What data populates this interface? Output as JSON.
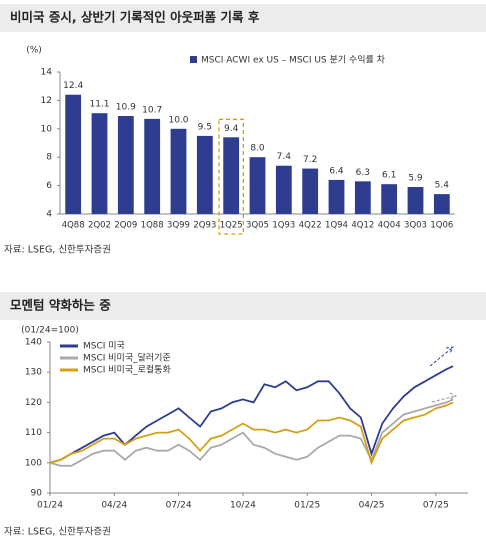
{
  "chart_data": [
    {
      "type": "bar",
      "title": "비미국 증시, 상반기 기록적인 아웃퍼폼 기록 후",
      "y_unit": "(%)",
      "series": [
        {
          "name": "MSCI ACWI ex US – MSCI US 분기 수익률 차",
          "color": "#2e3d8f",
          "values": [
            12.4,
            11.1,
            10.9,
            10.7,
            10.0,
            9.5,
            9.4,
            8.0,
            7.4,
            7.2,
            6.4,
            6.3,
            6.1,
            5.9,
            5.4
          ],
          "value_labels": [
            "12.4",
            "11.1",
            "10.9",
            "10.7",
            "10.0",
            "9.5",
            "9.4",
            "8.0",
            "7.4",
            "7.2",
            "6.4",
            "6.3",
            "6.1",
            "5.9",
            "5.4"
          ]
        }
      ],
      "categories": [
        "4Q88",
        "2Q02",
        "2Q09",
        "1Q88",
        "3Q99",
        "2Q93",
        "1Q25",
        "3Q05",
        "1Q93",
        "4Q22",
        "1Q94",
        "4Q12",
        "4Q04",
        "3Q03",
        "1Q06"
      ],
      "highlight_index": 6,
      "highlight_color": "#d4a017",
      "ylim": [
        4,
        14
      ],
      "yticks": [
        4,
        6,
        8,
        10,
        12,
        14
      ],
      "grid": false,
      "source": "자료: LSEG, 신한투자증권"
    },
    {
      "type": "line",
      "title": "모멘텀 약화하는 중",
      "y_unit": "(01/24=100)",
      "x": [
        0,
        0.5,
        1,
        1.5,
        2,
        2.5,
        3,
        3.5,
        4,
        4.5,
        5,
        5.5,
        6,
        6.5,
        7,
        7.5,
        8,
        8.5,
        9,
        9.5,
        10,
        10.5,
        11,
        11.5,
        12,
        12.5,
        13,
        13.5,
        14,
        14.5,
        15,
        15.5,
        16,
        16.5,
        17,
        17.5,
        18,
        18.5,
        18.8
      ],
      "series": [
        {
          "name": "MSCI 미국",
          "color": "#2e3d8f",
          "values": [
            100,
            101,
            103,
            105,
            107,
            109,
            110,
            106,
            109,
            112,
            114,
            116,
            118,
            115,
            112,
            117,
            118,
            120,
            121,
            120,
            126,
            125,
            127,
            124,
            125,
            127,
            127,
            123,
            118,
            115,
            103,
            113,
            118,
            122,
            125,
            127,
            129,
            131,
            132
          ]
        },
        {
          "name": "MSCI 비미국_달러기준",
          "color": "#aaaaaa",
          "values": [
            100,
            99,
            99,
            101,
            103,
            104,
            104,
            101,
            104,
            105,
            104,
            104,
            106,
            104,
            101,
            105,
            106,
            108,
            110,
            106,
            105,
            103,
            102,
            101,
            102,
            105,
            107,
            109,
            109,
            108,
            101,
            110,
            113,
            116,
            117,
            118,
            119,
            120,
            121
          ]
        },
        {
          "name": "MSCI 비미국_로컬통화",
          "color": "#d4a017",
          "values": [
            100,
            101,
            103,
            104,
            106,
            108,
            108,
            106,
            108,
            109,
            110,
            110,
            111,
            108,
            104,
            108,
            109,
            111,
            113,
            111,
            111,
            110,
            111,
            110,
            111,
            114,
            114,
            115,
            114,
            112,
            100,
            108,
            111,
            114,
            115,
            116,
            118,
            119,
            120
          ]
        }
      ],
      "xlim": [
        0,
        19.5
      ],
      "xticks": [
        {
          "value": 0,
          "label": "01/24"
        },
        {
          "value": 3,
          "label": "04/24"
        },
        {
          "value": 6,
          "label": "07/24"
        },
        {
          "value": 9,
          "label": "10/24"
        },
        {
          "value": 12,
          "label": "01/25"
        },
        {
          "value": 15,
          "label": "04/25"
        },
        {
          "value": 18,
          "label": "07/25"
        }
      ],
      "ylim": [
        90,
        140
      ],
      "yticks": [
        90,
        100,
        110,
        120,
        130,
        140
      ],
      "grid": false,
      "source": "자료: LSEG, 신한투자증권"
    }
  ]
}
